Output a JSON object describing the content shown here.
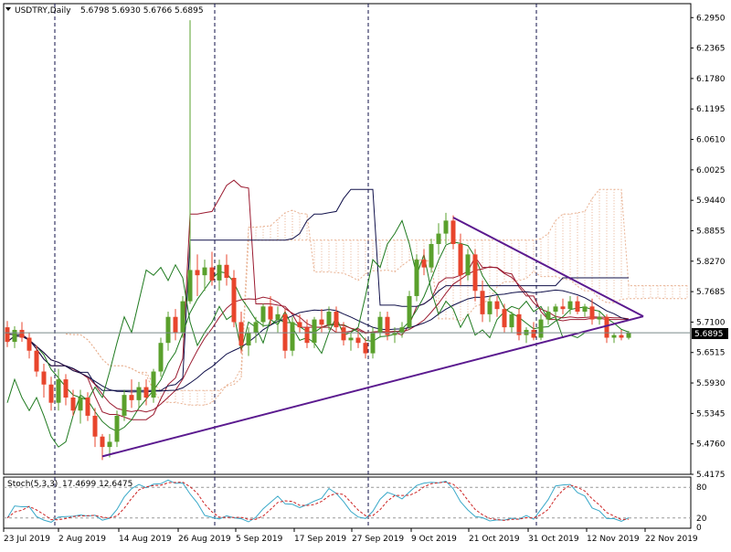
{
  "header": {
    "symbol_label": "USDTRY,Daily",
    "ohlc": "5.6798 5.6930 5.6766 5.6895"
  },
  "stoch_header": {
    "label": "Stoch(5,3,3)",
    "values": "17.4699 12.6475"
  },
  "current_price_label": "5.6895",
  "colors": {
    "bull": "#5aa02c",
    "bear": "#e8452c",
    "trendline": "#5b1a8f",
    "kijun": "#10104a",
    "tenkan": "#9b1b30",
    "chikou": "#1f7a1f",
    "ma_a": "#1f7a1f",
    "ma_b": "#9b1b30",
    "ma_c": "#10104a",
    "cloud_hatch": "#e8b090",
    "stoch_main": "#3aa9c9",
    "stoch_signal": "#cc2222"
  },
  "chart_data": {
    "type": "candlestick",
    "symbol": "USDTRY",
    "timeframe": "Daily",
    "y_axis_ticks": [
      "6.2950",
      "6.2365",
      "6.1780",
      "6.1195",
      "6.0610",
      "6.0025",
      "5.9440",
      "5.8855",
      "5.8270",
      "5.7685",
      "5.7100",
      "5.6515",
      "5.5930",
      "5.5345",
      "5.4760",
      "5.4175"
    ],
    "ylim": [
      5.4175,
      6.3218
    ],
    "x_axis_labels": [
      "23 Jul 2019",
      "2 Aug 2019",
      "14 Aug 2019",
      "26 Aug 2019",
      "5 Sep 2019",
      "17 Sep 2019",
      "27 Sep 2019",
      "9 Oct 2019",
      "21 Oct 2019",
      "31 Oct 2019",
      "12 Nov 2019",
      "22 Nov 2019"
    ],
    "current_price": 5.6895,
    "candles": [
      {
        "o": 5.7,
        "h": 5.712,
        "l": 5.662,
        "c": 5.672
      },
      {
        "o": 5.672,
        "h": 5.702,
        "l": 5.66,
        "c": 5.695
      },
      {
        "o": 5.695,
        "h": 5.71,
        "l": 5.672,
        "c": 5.68
      },
      {
        "o": 5.68,
        "h": 5.69,
        "l": 5.64,
        "c": 5.655
      },
      {
        "o": 5.655,
        "h": 5.665,
        "l": 5.605,
        "c": 5.615
      },
      {
        "o": 5.615,
        "h": 5.63,
        "l": 5.565,
        "c": 5.59
      },
      {
        "o": 5.59,
        "h": 5.605,
        "l": 5.54,
        "c": 5.555
      },
      {
        "o": 5.555,
        "h": 5.62,
        "l": 5.54,
        "c": 5.6
      },
      {
        "o": 5.6,
        "h": 5.61,
        "l": 5.55,
        "c": 5.565
      },
      {
        "o": 5.565,
        "h": 5.58,
        "l": 5.53,
        "c": 5.54
      },
      {
        "o": 5.54,
        "h": 5.58,
        "l": 5.515,
        "c": 5.565
      },
      {
        "o": 5.565,
        "h": 5.575,
        "l": 5.52,
        "c": 5.53
      },
      {
        "o": 5.53,
        "h": 5.545,
        "l": 5.47,
        "c": 5.49
      },
      {
        "o": 5.49,
        "h": 5.495,
        "l": 5.445,
        "c": 5.47
      },
      {
        "o": 5.47,
        "h": 5.495,
        "l": 5.45,
        "c": 5.48
      },
      {
        "o": 5.48,
        "h": 5.54,
        "l": 5.47,
        "c": 5.53
      },
      {
        "o": 5.53,
        "h": 5.58,
        "l": 5.52,
        "c": 5.57
      },
      {
        "o": 5.57,
        "h": 5.6,
        "l": 5.545,
        "c": 5.56
      },
      {
        "o": 5.56,
        "h": 5.595,
        "l": 5.545,
        "c": 5.585
      },
      {
        "o": 5.585,
        "h": 5.6,
        "l": 5.55,
        "c": 5.565
      },
      {
        "o": 5.565,
        "h": 5.62,
        "l": 5.555,
        "c": 5.615
      },
      {
        "o": 5.615,
        "h": 5.68,
        "l": 5.605,
        "c": 5.67
      },
      {
        "o": 5.67,
        "h": 5.73,
        "l": 5.655,
        "c": 5.72
      },
      {
        "o": 5.72,
        "h": 5.735,
        "l": 5.675,
        "c": 5.69
      },
      {
        "o": 5.69,
        "h": 5.76,
        "l": 5.68,
        "c": 5.75
      },
      {
        "o": 5.75,
        "h": 6.29,
        "l": 5.745,
        "c": 5.81
      },
      {
        "o": 5.81,
        "h": 5.84,
        "l": 5.76,
        "c": 5.8
      },
      {
        "o": 5.8,
        "h": 5.83,
        "l": 5.77,
        "c": 5.815
      },
      {
        "o": 5.815,
        "h": 5.845,
        "l": 5.78,
        "c": 5.79
      },
      {
        "o": 5.79,
        "h": 5.83,
        "l": 5.77,
        "c": 5.82
      },
      {
        "o": 5.82,
        "h": 5.84,
        "l": 5.78,
        "c": 5.795
      },
      {
        "o": 5.795,
        "h": 5.81,
        "l": 5.7,
        "c": 5.71
      },
      {
        "o": 5.71,
        "h": 5.73,
        "l": 5.65,
        "c": 5.665
      },
      {
        "o": 5.665,
        "h": 5.7,
        "l": 5.645,
        "c": 5.69
      },
      {
        "o": 5.69,
        "h": 5.72,
        "l": 5.67,
        "c": 5.71
      },
      {
        "o": 5.71,
        "h": 5.745,
        "l": 5.7,
        "c": 5.74
      },
      {
        "o": 5.74,
        "h": 5.76,
        "l": 5.705,
        "c": 5.715
      },
      {
        "o": 5.715,
        "h": 5.74,
        "l": 5.69,
        "c": 5.725
      },
      {
        "o": 5.725,
        "h": 5.735,
        "l": 5.64,
        "c": 5.655
      },
      {
        "o": 5.655,
        "h": 5.72,
        "l": 5.645,
        "c": 5.71
      },
      {
        "o": 5.71,
        "h": 5.725,
        "l": 5.69,
        "c": 5.7
      },
      {
        "o": 5.7,
        "h": 5.715,
        "l": 5.66,
        "c": 5.67
      },
      {
        "o": 5.67,
        "h": 5.72,
        "l": 5.66,
        "c": 5.715
      },
      {
        "o": 5.715,
        "h": 5.735,
        "l": 5.69,
        "c": 5.705
      },
      {
        "o": 5.705,
        "h": 5.74,
        "l": 5.695,
        "c": 5.73
      },
      {
        "o": 5.73,
        "h": 5.74,
        "l": 5.69,
        "c": 5.7
      },
      {
        "o": 5.7,
        "h": 5.71,
        "l": 5.665,
        "c": 5.675
      },
      {
        "o": 5.675,
        "h": 5.69,
        "l": 5.655,
        "c": 5.68
      },
      {
        "o": 5.68,
        "h": 5.695,
        "l": 5.66,
        "c": 5.67
      },
      {
        "o": 5.67,
        "h": 5.68,
        "l": 5.64,
        "c": 5.65
      },
      {
        "o": 5.65,
        "h": 5.7,
        "l": 5.64,
        "c": 5.69
      },
      {
        "o": 5.69,
        "h": 5.73,
        "l": 5.68,
        "c": 5.72
      },
      {
        "o": 5.72,
        "h": 5.73,
        "l": 5.675,
        "c": 5.685
      },
      {
        "o": 5.685,
        "h": 5.7,
        "l": 5.67,
        "c": 5.69
      },
      {
        "o": 5.69,
        "h": 5.71,
        "l": 5.68,
        "c": 5.7
      },
      {
        "o": 5.7,
        "h": 5.77,
        "l": 5.695,
        "c": 5.76
      },
      {
        "o": 5.76,
        "h": 5.84,
        "l": 5.75,
        "c": 5.83
      },
      {
        "o": 5.83,
        "h": 5.85,
        "l": 5.8,
        "c": 5.815
      },
      {
        "o": 5.815,
        "h": 5.87,
        "l": 5.805,
        "c": 5.86
      },
      {
        "o": 5.86,
        "h": 5.9,
        "l": 5.84,
        "c": 5.88
      },
      {
        "o": 5.88,
        "h": 5.92,
        "l": 5.86,
        "c": 5.905
      },
      {
        "o": 5.905,
        "h": 5.915,
        "l": 5.85,
        "c": 5.86
      },
      {
        "o": 5.86,
        "h": 5.88,
        "l": 5.78,
        "c": 5.8
      },
      {
        "o": 5.8,
        "h": 5.85,
        "l": 5.79,
        "c": 5.84
      },
      {
        "o": 5.84,
        "h": 5.85,
        "l": 5.75,
        "c": 5.77
      },
      {
        "o": 5.77,
        "h": 5.79,
        "l": 5.71,
        "c": 5.725
      },
      {
        "o": 5.725,
        "h": 5.76,
        "l": 5.71,
        "c": 5.75
      },
      {
        "o": 5.75,
        "h": 5.76,
        "l": 5.72,
        "c": 5.735
      },
      {
        "o": 5.735,
        "h": 5.745,
        "l": 5.69,
        "c": 5.7
      },
      {
        "o": 5.7,
        "h": 5.73,
        "l": 5.69,
        "c": 5.725
      },
      {
        "o": 5.725,
        "h": 5.735,
        "l": 5.675,
        "c": 5.685
      },
      {
        "o": 5.685,
        "h": 5.7,
        "l": 5.67,
        "c": 5.695
      },
      {
        "o": 5.695,
        "h": 5.71,
        "l": 5.675,
        "c": 5.68
      },
      {
        "o": 5.68,
        "h": 5.725,
        "l": 5.675,
        "c": 5.715
      },
      {
        "o": 5.715,
        "h": 5.74,
        "l": 5.705,
        "c": 5.73
      },
      {
        "o": 5.73,
        "h": 5.745,
        "l": 5.715,
        "c": 5.74
      },
      {
        "o": 5.74,
        "h": 5.755,
        "l": 5.725,
        "c": 5.735
      },
      {
        "o": 5.735,
        "h": 5.76,
        "l": 5.725,
        "c": 5.75
      },
      {
        "o": 5.75,
        "h": 5.76,
        "l": 5.725,
        "c": 5.73
      },
      {
        "o": 5.73,
        "h": 5.745,
        "l": 5.72,
        "c": 5.74
      },
      {
        "o": 5.74,
        "h": 5.755,
        "l": 5.705,
        "c": 5.715
      },
      {
        "o": 5.715,
        "h": 5.73,
        "l": 5.705,
        "c": 5.72
      },
      {
        "o": 5.72,
        "h": 5.725,
        "l": 5.67,
        "c": 5.68
      },
      {
        "o": 5.68,
        "h": 5.69,
        "l": 5.67,
        "c": 5.685
      },
      {
        "o": 5.685,
        "h": 5.695,
        "l": 5.675,
        "c": 5.68
      },
      {
        "o": 5.6798,
        "h": 5.693,
        "l": 5.6766,
        "c": 5.6895
      }
    ],
    "trendlines": [
      {
        "from": [
          13,
          5.452
        ],
        "to": [
          87,
          5.721
        ]
      },
      {
        "from": [
          61,
          5.911
        ],
        "to": [
          87,
          5.721
        ]
      }
    ],
    "horizontal_lines": [
      5.6895
    ],
    "vertical_separator_dates": [
      "2 Aug 2019",
      "26 Aug 2019",
      "27 Sep 2019",
      "31 Oct 2019"
    ],
    "stochastic": {
      "name": "Stoch(5,3,3)",
      "levels": [
        20,
        80
      ],
      "ylim": [
        0,
        100
      ],
      "last_main": 17.4699,
      "last_signal": 12.6475
    }
  }
}
